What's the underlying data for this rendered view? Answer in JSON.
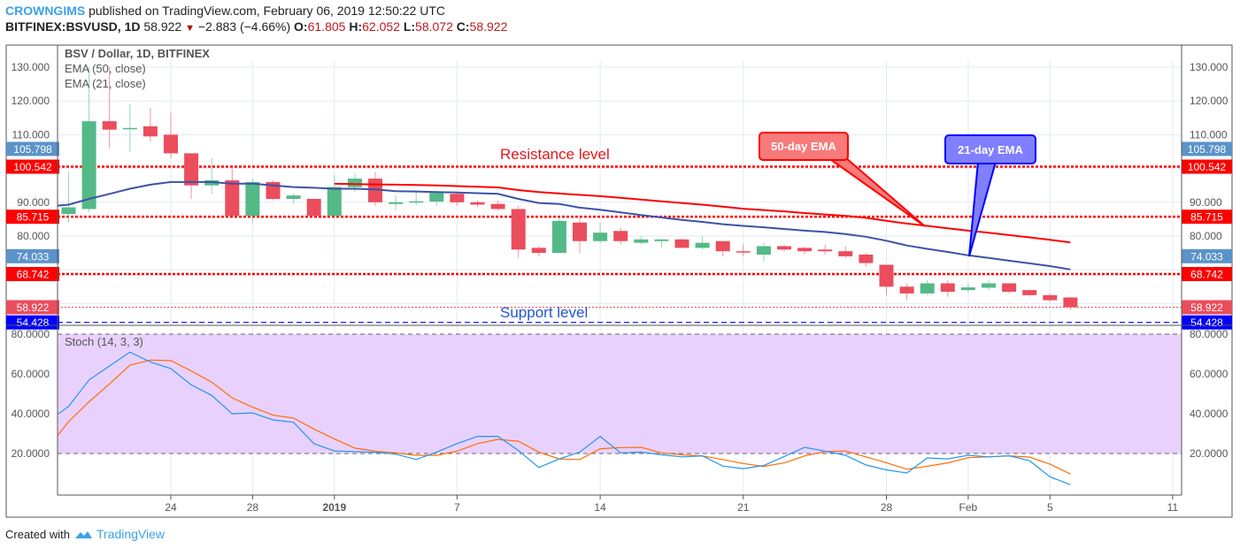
{
  "header": {
    "author": "CROWNGIMS",
    "published": "published on TradingView.com, February 06, 2019 12:50:22 UTC",
    "symbol": "BITFINEX:BSVUSD, 1D",
    "last": "58.922",
    "change": "−2.883 (−4.66%)",
    "o_label": "O:",
    "o": "61.805",
    "h_label": "H:",
    "h": "62.052",
    "l_label": "L:",
    "l": "58.072",
    "c_label": "C:",
    "c": "58.922",
    "direction_icon": "triangle-down-icon"
  },
  "legend": {
    "title": "BSV / Dollar, 1D, BITFINEX",
    "ema50": "EMA (50, close)",
    "ema21": "EMA (21, close)",
    "stoch": "Stoch (14, 3, 3)"
  },
  "annotations": {
    "resistance": "Resistance level",
    "support": "Support level",
    "ema50_callout": "50-day EMA",
    "ema21_callout": "21-day EMA"
  },
  "footer": {
    "created_with": "Created with",
    "brand": "TradingView",
    "logo_icon": "tradingview-cloud-icon"
  },
  "colors": {
    "up": "#53b987",
    "down": "#eb4d5c",
    "ema50": "#ff0000",
    "ema21": "#3c52a8",
    "stoch_k": "#2196f3",
    "stoch_d": "#ff6d00",
    "stoch_band": "#e9d1fe"
  },
  "chart_data": [
    {
      "type": "candlestick",
      "title": "BSV / Dollar, 1D, BITFINEX",
      "ylim": [
        50,
        134
      ],
      "y_ticks": [
        "130.000",
        "120.000",
        "110.000",
        "90.000",
        "80.000"
      ],
      "x_ticks": [
        "24",
        "28",
        "2019",
        "7",
        "14",
        "21",
        "28",
        "Feb",
        "5",
        "11"
      ],
      "x_tick_dates": [
        "2018-12-24",
        "2018-12-28",
        "2019-01-01",
        "2019-01-07",
        "2019-01-14",
        "2019-01-21",
        "2019-01-28",
        "2019-02-01",
        "2019-02-05",
        "2019-02-11"
      ],
      "grid": true,
      "candles_columns": [
        "date",
        "open",
        "high",
        "low",
        "close"
      ],
      "candles": [
        [
          "2018-12-19",
          86.5,
          99,
          84,
          88.5
        ],
        [
          "2018-12-20",
          88,
          130,
          87,
          114
        ],
        [
          "2018-12-21",
          114,
          130,
          106,
          111.5
        ],
        [
          "2018-12-22",
          112,
          119,
          105,
          112
        ],
        [
          "2018-12-23",
          112.5,
          118,
          108,
          109.5
        ],
        [
          "2018-12-24",
          110,
          116.5,
          103,
          104.5
        ],
        [
          "2018-12-25",
          104.5,
          104.5,
          91,
          95
        ],
        [
          "2018-12-26",
          95,
          103,
          92.5,
          96.5
        ],
        [
          "2018-12-27",
          96.5,
          100,
          86,
          86
        ],
        [
          "2018-12-28",
          86,
          97,
          84,
          96
        ],
        [
          "2018-12-29",
          96,
          96.5,
          90.5,
          91
        ],
        [
          "2018-12-30",
          91,
          92.5,
          89.5,
          92
        ],
        [
          "2018-12-31",
          91,
          91,
          86,
          86
        ],
        [
          "2019-01-01",
          86,
          98,
          86,
          94.5
        ],
        [
          "2019-01-02",
          94.5,
          98.5,
          93,
          97
        ],
        [
          "2019-01-03",
          97,
          99,
          89,
          90
        ],
        [
          "2019-01-04",
          89.5,
          92,
          87.5,
          90
        ],
        [
          "2019-01-05",
          90,
          93.5,
          89,
          90.3
        ],
        [
          "2019-01-06",
          90.2,
          93.5,
          89,
          92.8
        ],
        [
          "2019-01-07",
          92.5,
          93,
          89,
          90
        ],
        [
          "2019-01-08",
          90,
          90.5,
          88.5,
          89.3
        ],
        [
          "2019-01-09",
          89.5,
          90.5,
          87.5,
          88
        ],
        [
          "2019-01-10",
          88,
          89,
          73.5,
          76
        ],
        [
          "2019-01-11",
          76.5,
          77,
          74,
          75
        ],
        [
          "2019-01-12",
          75,
          86,
          75,
          84.5
        ],
        [
          "2019-01-13",
          84,
          86,
          75,
          78.5
        ],
        [
          "2019-01-14",
          78.5,
          84,
          78,
          81
        ],
        [
          "2019-01-15",
          81.5,
          82.5,
          77.5,
          78.5
        ],
        [
          "2019-01-16",
          78,
          80,
          77.5,
          79
        ],
        [
          "2019-01-17",
          78.5,
          79.2,
          76.5,
          79
        ],
        [
          "2019-01-18",
          79,
          79.2,
          76.5,
          76.5
        ],
        [
          "2019-01-19",
          76.5,
          80,
          76,
          78
        ],
        [
          "2019-01-20",
          78.5,
          78.5,
          74,
          75.5
        ],
        [
          "2019-01-21",
          75.5,
          77.5,
          74,
          75.2
        ],
        [
          "2019-01-22",
          74.5,
          78,
          72.5,
          77
        ],
        [
          "2019-01-23",
          77,
          77.5,
          75.5,
          76
        ],
        [
          "2019-01-24",
          76.5,
          76.8,
          74.5,
          75.5
        ],
        [
          "2019-01-25",
          76,
          77.5,
          74.5,
          75.5
        ],
        [
          "2019-01-26",
          75.5,
          77,
          73.5,
          74
        ],
        [
          "2019-01-27",
          74.5,
          75,
          71,
          72
        ],
        [
          "2019-01-28",
          71.5,
          71.5,
          62.5,
          65
        ],
        [
          "2019-01-29",
          65,
          66,
          61,
          63
        ],
        [
          "2019-01-30",
          63,
          67,
          62.5,
          66
        ],
        [
          "2019-01-31",
          66,
          67,
          62,
          63.5
        ],
        [
          "2019-02-01",
          64,
          66,
          63.5,
          64.8
        ],
        [
          "2019-02-02",
          64.7,
          67,
          64,
          66
        ],
        [
          "2019-02-03",
          66,
          66,
          63,
          63.5
        ],
        [
          "2019-02-04",
          64,
          64,
          62,
          62.5
        ],
        [
          "2019-02-05",
          62.5,
          63,
          60.5,
          61
        ],
        [
          "2019-02-06",
          61.805,
          62.052,
          58.072,
          58.922
        ]
      ],
      "series": [
        {
          "name": "EMA (21, close)",
          "start": "2018-12-18",
          "values": [
            89,
            89.3,
            91,
            92.5,
            94,
            95.2,
            96,
            96,
            96,
            95.5,
            95.5,
            95,
            94.5,
            94.3,
            94,
            94,
            93.8,
            93.3,
            93.2,
            93,
            92.9,
            92.7,
            92.5,
            91,
            89.8,
            89.5,
            88.4,
            87.8,
            87,
            86.2,
            85.5,
            84.8,
            84.2,
            83.5,
            83,
            82.6,
            82.1,
            81.6,
            81.2,
            80.6,
            79.8,
            78.6,
            77.2,
            76.2,
            75.3,
            74.3,
            73.5,
            72.7,
            71.9,
            71.1,
            70.1
          ]
        },
        {
          "name": "EMA (50, close)",
          "start": "2019-01-01",
          "values": [
            95.5,
            95.4,
            95.3,
            95.2,
            95.1,
            95,
            94.8,
            94.6,
            94.4,
            93.6,
            93,
            92.6,
            92.2,
            91.8,
            91.3,
            90.8,
            90.3,
            89.8,
            89.3,
            88.7,
            88.1,
            87.7,
            87.3,
            86.8,
            86.4,
            86,
            85.4,
            84.5,
            83.7,
            83,
            82.3,
            81.6,
            81,
            80.3,
            79.6,
            78.9,
            78.1
          ]
        }
      ],
      "horizontal_lines": [
        {
          "value": 100.542,
          "label": "100.542",
          "color": "#ff0000",
          "style": "dotted-thick"
        },
        {
          "value": 85.715,
          "label": "85.715",
          "color": "#ff0000",
          "style": "dotted-thick"
        },
        {
          "value": 68.742,
          "label": "68.742",
          "color": "#ff0000",
          "style": "dotted-thick"
        },
        {
          "value": 58.922,
          "label": "58.922",
          "color": "#eb4d5c",
          "style": "dotted-thin"
        },
        {
          "value": 54.428,
          "label": "54.428",
          "color": "#0000ff",
          "style": "dashed"
        }
      ],
      "price_badges": [
        {
          "value": 105.798,
          "label": "105.798",
          "color": "#5b93c9"
        },
        {
          "value": 74.033,
          "label": "74.033",
          "color": "#5b93c9"
        }
      ]
    },
    {
      "type": "line",
      "title": "Stoch (14, 3, 3)",
      "ylim": [
        0,
        85
      ],
      "y_ticks": [
        "80.0000",
        "60.0000",
        "40.0000",
        "20.0000"
      ],
      "band": [
        20,
        80
      ],
      "series": [
        {
          "name": "%K",
          "start": "2018-12-18",
          "values": [
            39.7,
            43.7,
            57,
            64,
            71,
            66,
            62.7,
            54.5,
            49.2,
            40,
            40.4,
            36.9,
            35.7,
            25,
            21.3,
            21,
            20.6,
            19.7,
            17,
            20.7,
            25,
            28.6,
            28.6,
            21.5,
            13,
            17.3,
            20.7,
            28.6,
            20.3,
            20.7,
            19.4,
            18.3,
            18.8,
            13.7,
            12.4,
            14,
            18.5,
            23.1,
            21.2,
            19.1,
            14.2,
            11.8,
            10.2,
            17.8,
            17.3,
            19.1,
            18.3,
            18.9,
            16.4,
            8.3,
            4.3
          ]
        },
        {
          "name": "%D",
          "start": "2018-12-18",
          "values": [
            29,
            36,
            46,
            55,
            64.4,
            67,
            66.7,
            61.5,
            55.9,
            48,
            43.3,
            39.3,
            37.8,
            32.3,
            27.4,
            22.7,
            21.2,
            20.3,
            19.1,
            19.1,
            21.2,
            25,
            27.1,
            26.2,
            20.7,
            17.3,
            17,
            22.4,
            23,
            23.1,
            20.3,
            19.4,
            18.8,
            17,
            15,
            13.5,
            15.3,
            18.8,
            21,
            21.3,
            18.3,
            15.4,
            12.1,
            13.6,
            15.3,
            17.9,
            18.3,
            18.8,
            18.2,
            14.6,
            9.7
          ]
        }
      ]
    }
  ]
}
